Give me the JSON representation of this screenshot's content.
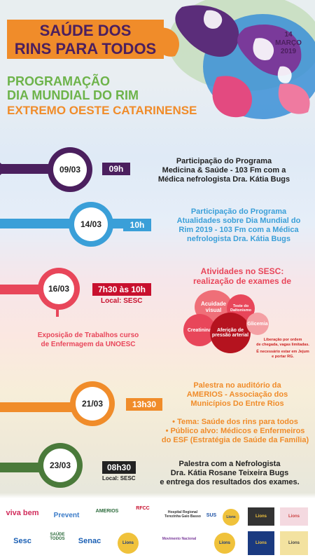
{
  "header": {
    "title_line1": "SAÚDE DOS",
    "title_line2": "RINS PARA TODOS",
    "date_line1": "14",
    "date_line2": "MARÇO",
    "date_line3": "2019",
    "program_line1": "PROGRAMAÇÃO",
    "program_line2": "DIA MUNDIAL DO RIM",
    "program_line3": "EXTREMO OESTE CATARINENSE"
  },
  "events": [
    {
      "date": "09/03",
      "time": "09h",
      "color": "#4b1f5e",
      "desc": [
        "Participação do Programa",
        "Medicina & Saúde - 103 Fm com a",
        "Médica nefrologista Dra. Kátia Bugs"
      ]
    },
    {
      "date": "14/03",
      "time": "10h",
      "color": "#3a9fd8",
      "desc": [
        "Participação do Programa",
        "Atualidades sobre Dia Mundial do",
        "Rim 2019 - 103 Fm com a Médica",
        "nefrologista Dra. Kátia Bugs"
      ]
    },
    {
      "date": "16/03",
      "time": "7h30 às 10h",
      "place": "Local: SESC",
      "color": "#e8465a",
      "desc": [
        "Atividades no SESC:",
        "realização de exames de"
      ],
      "exhibit": [
        "Exposição de Trabalhos curso",
        "de Enfermagem da UNOESC"
      ],
      "exams": [
        "Acuidade visual",
        "Teste do Daltonismo",
        "Creatinina",
        "Aferição de pressão arterial",
        "Glicemia"
      ],
      "notes": [
        "Liberação por ordem",
        "de chegada, vagas limitadas.",
        "É necessário estar em Jejum",
        "e portar RG."
      ]
    },
    {
      "date": "21/03",
      "time": "13h30",
      "color": "#f08c2a",
      "desc": [
        "Palestra no auditório da",
        "AMERIOS - Associação dos",
        "Municípios Do Entre Rios"
      ],
      "bullets": [
        "• Tema: Saúde dos rins para todos",
        "• Público alvo: Médicos e Enfermeiros",
        "do ESF (Estratégia de Saúde da Família)"
      ]
    },
    {
      "date": "23/03",
      "time": "08h30",
      "place": "Local: SESC",
      "color": "#4a7a3a",
      "desc": [
        "Palestra com a Nefrologista",
        "Dra. Kátia Rosane Teixeira Bugs",
        "e entrega dos resultados dos exames."
      ]
    }
  ],
  "sponsors": {
    "row1": [
      "viva bem",
      "Prevent",
      "AMERIOS",
      "RFCC",
      "Hospital Regional Terezinha Gaio Basso",
      "SUS",
      "Lions",
      "Lions",
      "Lions"
    ],
    "row2": [
      "Sesc",
      "SAÚDE TODOS",
      "Senac",
      "Lions",
      "Movimento Nacional",
      "Lions",
      "Lions",
      "Lions"
    ]
  }
}
